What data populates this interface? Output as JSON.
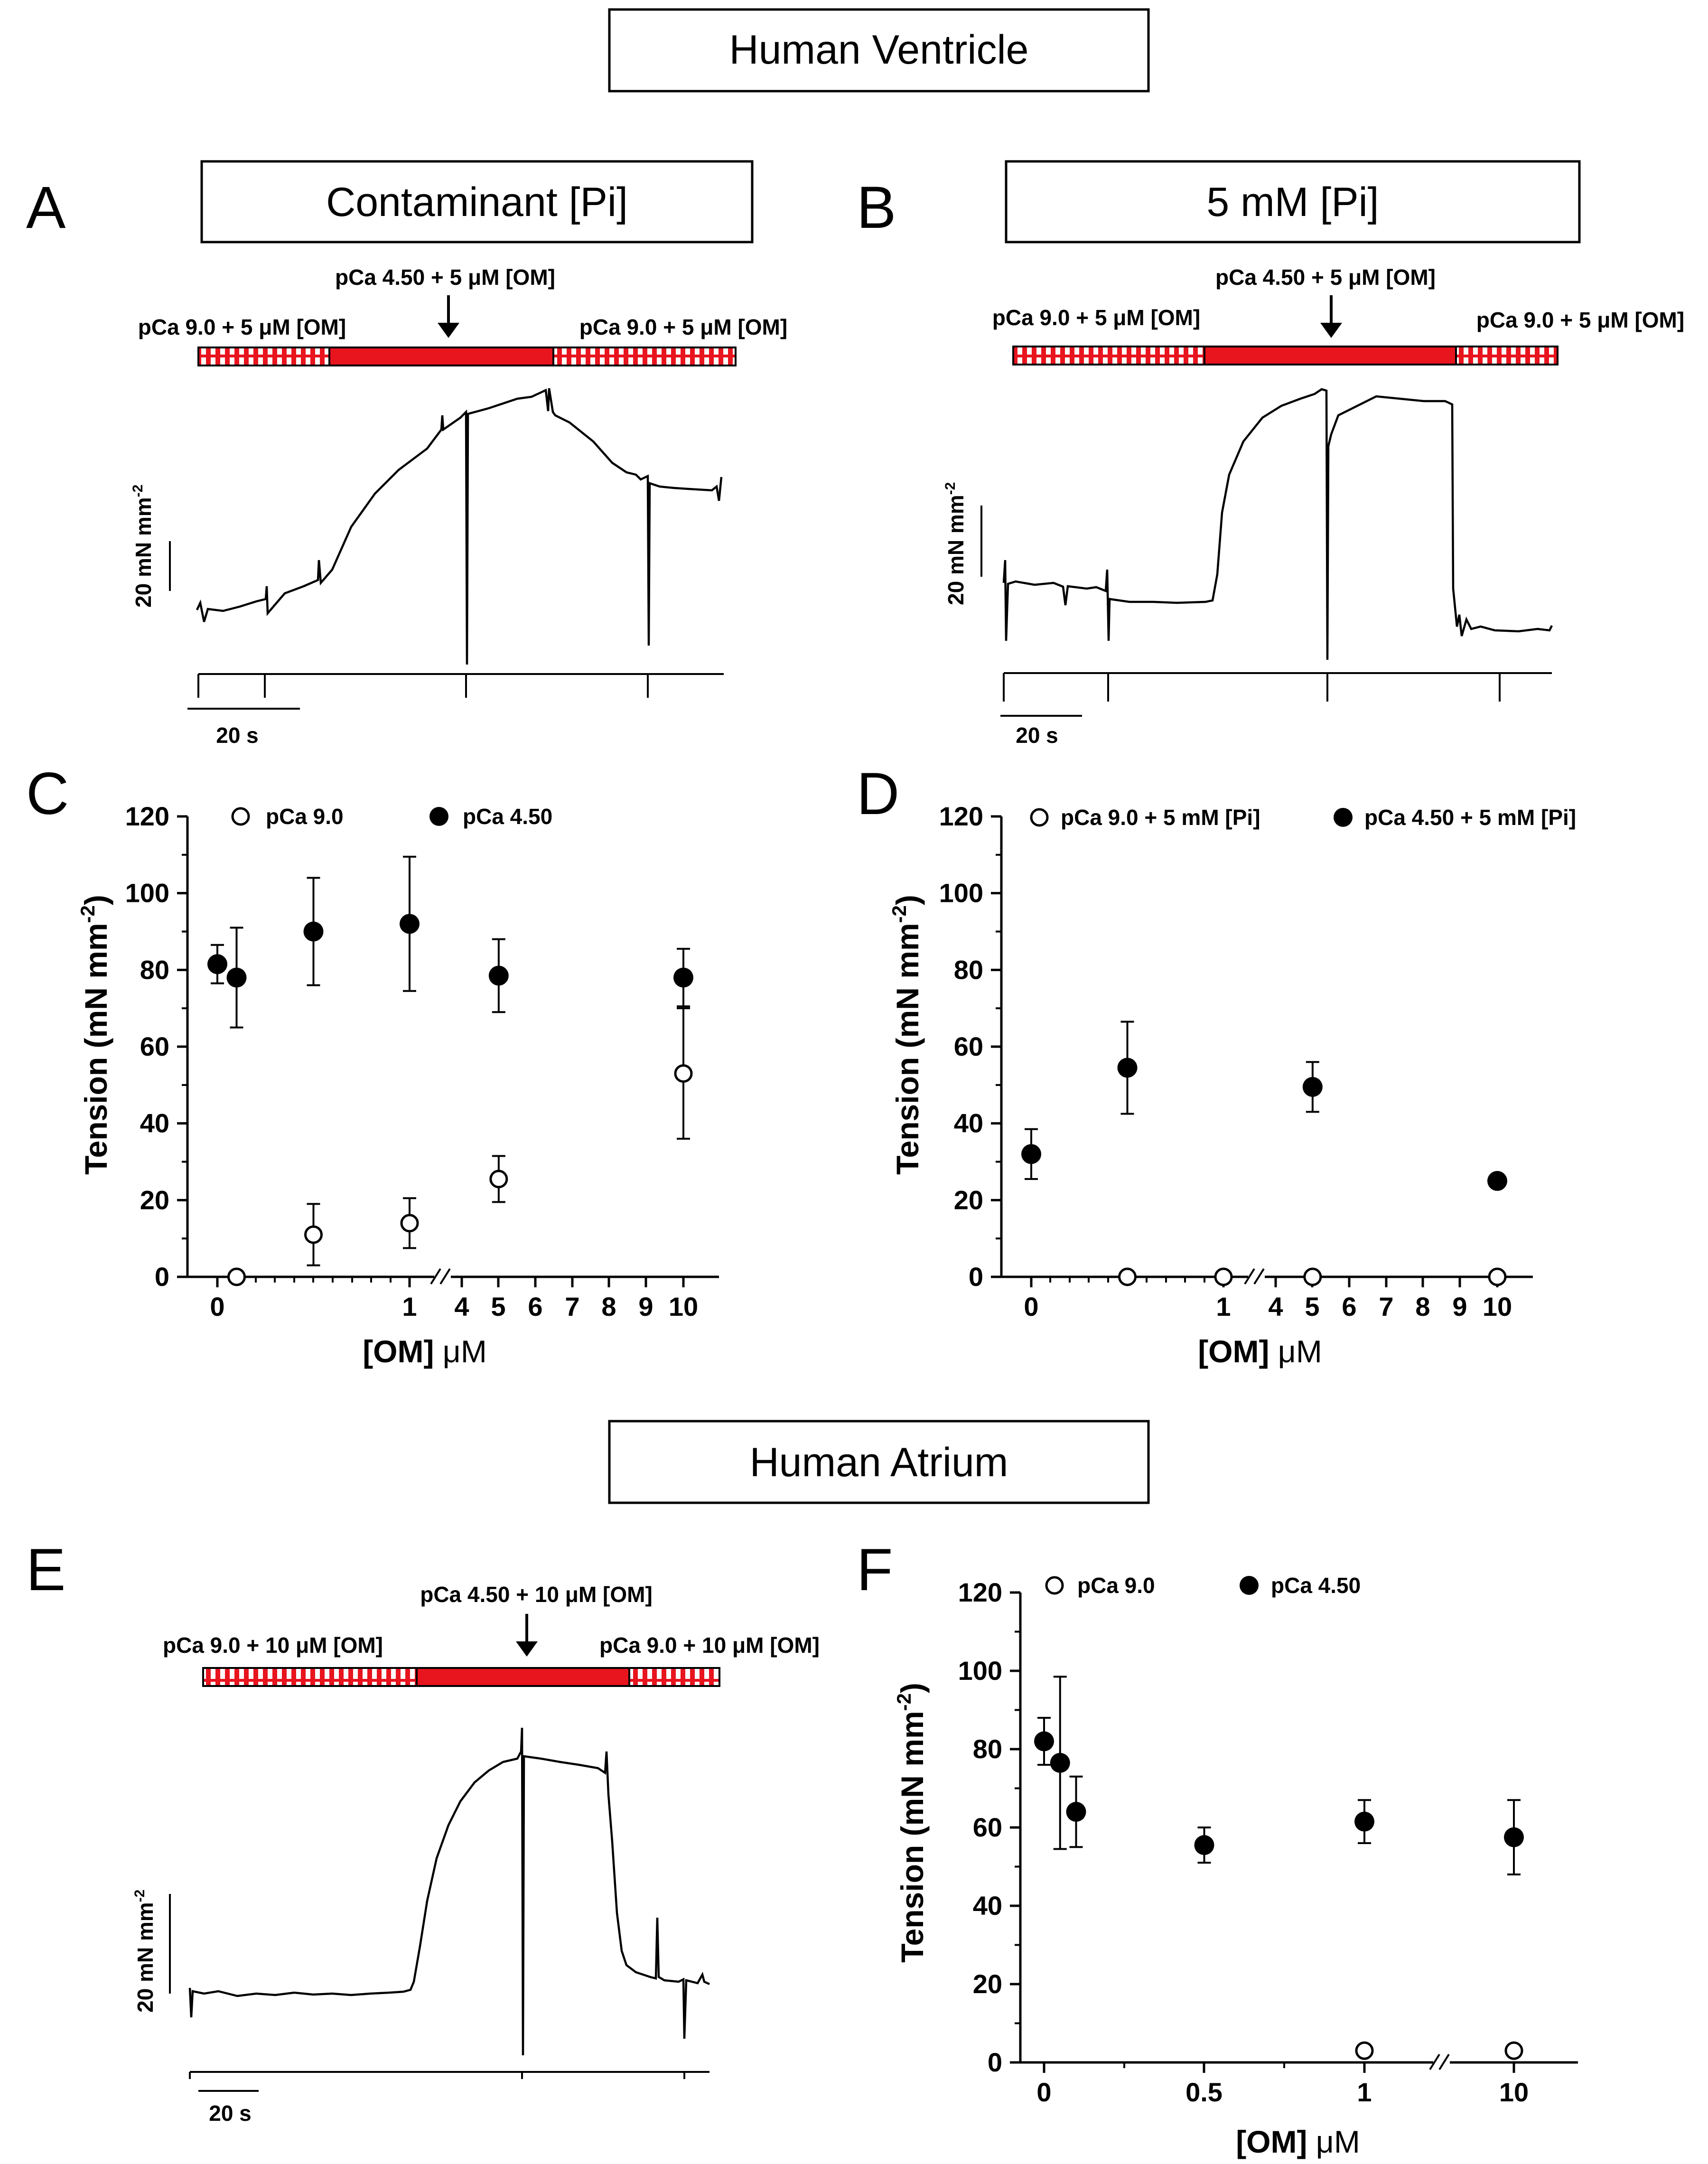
{
  "figure": {
    "ventricle_title": "Human Ventricle",
    "atrium_title": "Human Atrium",
    "colors": {
      "solution_bar": "#e8141e",
      "ink": "#000000",
      "paper": "#ffffff"
    }
  },
  "panels": {
    "A": {
      "letter": "A",
      "box_title": "Contaminant [Pi]",
      "label_activating": "pCa 4.50 + 5 μM [OM]",
      "label_relax_left": "pCa 9.0 + 5 μM [OM]",
      "label_relax_right": "pCa 9.0 + 5 μM [OM]",
      "scale_y": "20 mN mm",
      "scale_y_sup": "-2",
      "scale_x": "20 s"
    },
    "B": {
      "letter": "B",
      "box_title": "5 mM [Pi]",
      "label_activating": "pCa 4.50 + 5 μM [OM]",
      "label_relax_left": "pCa 9.0 + 5 μM [OM]",
      "label_relax_right": "pCa 9.0 + 5 μM [OM]",
      "scale_y": "20 mN mm",
      "scale_y_sup": "-2",
      "scale_x": "20 s"
    },
    "C": {
      "letter": "C"
    },
    "D": {
      "letter": "D"
    },
    "E": {
      "letter": "E",
      "label_activating": "pCa 4.50 + 10 μM [OM]",
      "label_relax_left": "pCa 9.0 + 10 μM [OM]",
      "label_relax_right": "pCa 9.0 + 10 μM [OM]",
      "scale_y": "20 mN mm",
      "scale_y_sup": "-2",
      "scale_x": "20 s"
    },
    "F": {
      "letter": "F"
    }
  },
  "chart_data": [
    {
      "panel": "C",
      "type": "scatter",
      "ylabel": "Tension (mN mm",
      "ylabel_sup": "-2",
      "ylabel_end": ")",
      "xlabel_pre": "[OM] ",
      "xlabel_unit": "μM",
      "ylim": [
        0,
        120
      ],
      "yticks": [
        "0",
        "20",
        "40",
        "60",
        "80",
        "100",
        "120"
      ],
      "xticks": [
        "0",
        "1",
        "4",
        "5",
        "6",
        "7",
        "8",
        "9",
        "10"
      ],
      "x_axis_break": "between 1 and 4",
      "legend": [
        "pCa 9.0",
        "pCa 4.50"
      ],
      "series": [
        {
          "name": "pCa 9.0",
          "marker": "open-circle",
          "x": [
            0.1,
            0.5,
            1,
            5,
            10
          ],
          "y": [
            0,
            11,
            14,
            25.5,
            53
          ],
          "err": [
            0,
            8,
            6.5,
            6,
            17
          ]
        },
        {
          "name": "pCa 4.50",
          "marker": "filled-circle",
          "x": [
            0,
            0.1,
            0.5,
            1,
            5,
            10
          ],
          "y": [
            81.5,
            78,
            90,
            92,
            78.5,
            78
          ],
          "err": [
            5,
            13,
            14,
            17.5,
            9.5,
            7.5
          ]
        }
      ]
    },
    {
      "panel": "D",
      "type": "scatter",
      "ylabel": "Tension (mN mm",
      "ylabel_sup": "-2",
      "ylabel_end": ")",
      "xlabel_pre": "[OM] ",
      "xlabel_unit": "μM",
      "ylim": [
        0,
        120
      ],
      "yticks": [
        "0",
        "20",
        "40",
        "60",
        "80",
        "100",
        "120"
      ],
      "xticks": [
        "0",
        "1",
        "4",
        "5",
        "6",
        "7",
        "8",
        "9",
        "10"
      ],
      "x_axis_break": "between 1 and 4",
      "legend": [
        "pCa 9.0 + 5 mM [Pi]",
        "pCa 4.50 + 5 mM [Pi]"
      ],
      "series": [
        {
          "name": "pCa 9.0 + 5 mM [Pi]",
          "marker": "open-circle",
          "x": [
            0.5,
            1,
            5,
            10
          ],
          "y": [
            0,
            0,
            0,
            0
          ],
          "err": [
            0,
            0,
            0,
            0
          ]
        },
        {
          "name": "pCa 4.50 + 5 mM [Pi]",
          "marker": "filled-circle",
          "x": [
            0,
            0.5,
            5,
            10
          ],
          "y": [
            32,
            54.5,
            49.5,
            25
          ],
          "err": [
            6.5,
            12,
            6.5,
            0
          ]
        }
      ]
    },
    {
      "panel": "F",
      "type": "scatter",
      "ylabel": "Tension (mN mm",
      "ylabel_sup": "-2",
      "ylabel_end": ")",
      "xlabel_pre": "[OM] ",
      "xlabel_unit": "μM",
      "ylim": [
        0,
        120
      ],
      "yticks": [
        "0",
        "20",
        "40",
        "60",
        "80",
        "100",
        "120"
      ],
      "xticks": [
        "0",
        "0.5",
        "1",
        "10"
      ],
      "x_axis_break": "between 1 and 10",
      "legend": [
        "pCa 9.0",
        "pCa 4.50"
      ],
      "series": [
        {
          "name": "pCa 9.0",
          "marker": "open-circle",
          "x": [
            1,
            10
          ],
          "y": [
            3,
            3
          ],
          "err": [
            0,
            0
          ]
        },
        {
          "name": "pCa 4.50",
          "marker": "filled-circle",
          "x": [
            0,
            0.05,
            0.1,
            0.5,
            1,
            10
          ],
          "y": [
            82,
            76.5,
            64,
            55.5,
            61.5,
            57.5
          ],
          "err": [
            6,
            22,
            9,
            4.5,
            5.5,
            9.5
          ]
        }
      ]
    }
  ]
}
